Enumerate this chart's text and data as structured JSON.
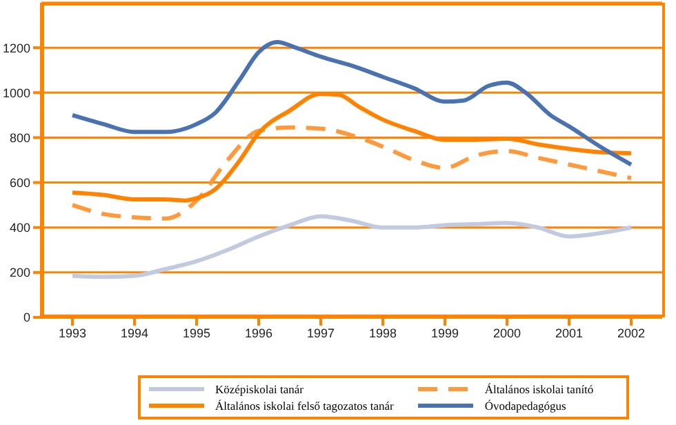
{
  "chart_data": {
    "type": "line",
    "xlim": [
      1992.5,
      2002.5
    ],
    "xticks": [
      1993,
      1994,
      1995,
      1996,
      1997,
      1998,
      1999,
      2000,
      2001,
      2002
    ],
    "ylim": [
      0,
      1400
    ],
    "yticks": [
      0,
      200,
      400,
      600,
      800,
      1000,
      1200
    ],
    "grid": "y",
    "legend": "bottom",
    "series": [
      {
        "name": "Középiskolai tanár",
        "color": "#c2cadf",
        "line_style": "solid",
        "x": [
          1993,
          1993.5,
          1994,
          1994.5,
          1995,
          1995.5,
          1996,
          1996.5,
          1997,
          1997.5,
          1998,
          1998.5,
          1999,
          1999.5,
          2000,
          2000.5,
          2001,
          2001.5,
          2002
        ],
        "values": [
          185,
          180,
          185,
          215,
          250,
          300,
          360,
          410,
          450,
          430,
          400,
          400,
          410,
          415,
          420,
          400,
          360,
          375,
          400
        ]
      },
      {
        "name": "Általános iskolai tanító",
        "color": "#ff9a3c",
        "line_style": "dashed",
        "x": [
          1993,
          1993.5,
          1994,
          1994.5,
          1995,
          1995.5,
          1996,
          1996.5,
          1997,
          1997.5,
          1998,
          1998.5,
          1999,
          1999.5,
          2000,
          2000.5,
          2001,
          2001.5,
          2002
        ],
        "values": [
          500,
          460,
          445,
          440,
          520,
          700,
          830,
          845,
          840,
          810,
          760,
          700,
          665,
          720,
          740,
          710,
          680,
          650,
          620
        ]
      },
      {
        "name": "Általános iskolai felső tagozatos tanár",
        "color": "#ff8200",
        "line_style": "solid",
        "x": [
          1993,
          1993.5,
          1994,
          1994.5,
          1994.8,
          1995,
          1995.3,
          1995.7,
          1996,
          1996.5,
          1997,
          1997.3,
          1997.6,
          1998,
          1998.5,
          1999,
          1999.5,
          2000,
          2000.5,
          2001,
          2001.5,
          2002
        ],
        "values": [
          555,
          545,
          525,
          525,
          520,
          530,
          570,
          700,
          820,
          920,
          995,
          990,
          940,
          880,
          830,
          790,
          790,
          795,
          770,
          750,
          735,
          730
        ]
      },
      {
        "name": "Óvodapedagógus",
        "color": "#4a72b0",
        "line_style": "solid",
        "x": [
          1993,
          1993.5,
          1994,
          1994.5,
          1995,
          1995.3,
          1995.7,
          1996,
          1996.3,
          1996.6,
          1997,
          1997.5,
          1998,
          1998.5,
          1999,
          1999.3,
          1999.7,
          2000,
          2000.3,
          2000.7,
          2001,
          2001.5,
          2002
        ],
        "values": [
          900,
          860,
          825,
          825,
          860,
          910,
          1060,
          1180,
          1225,
          1200,
          1160,
          1120,
          1070,
          1020,
          960,
          965,
          1030,
          1045,
          1000,
          900,
          850,
          760,
          680
        ]
      }
    ]
  }
}
